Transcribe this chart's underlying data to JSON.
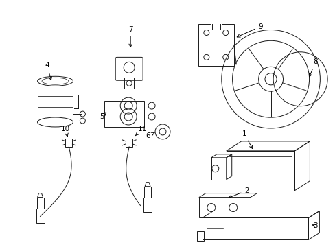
{
  "background_color": "#ffffff",
  "line_color": "#1a1a1a",
  "label_color": "#000000",
  "fig_width": 4.89,
  "fig_height": 3.6,
  "dpi": 100
}
